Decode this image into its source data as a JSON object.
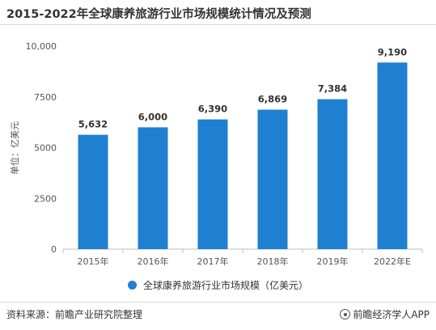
{
  "title": "2015-2022年全球康养旅游行业市场规模统计情况及预测",
  "chart_data": {
    "type": "bar",
    "categories": [
      "2015年",
      "2016年",
      "2017年",
      "2018年",
      "2019年",
      "2022年E"
    ],
    "series": [
      {
        "name": "全球康养旅游行业市场规模（亿美元）",
        "values": [
          5632,
          6000,
          6390,
          6869,
          7384,
          9190
        ],
        "data_labels": [
          "5,632",
          "6,000",
          "6,390",
          "6,869",
          "7,384",
          "9,190"
        ],
        "color": "#1f7fd0"
      }
    ],
    "ylabel": "单位：亿美元",
    "xlabel": "",
    "ylim": [
      0,
      10000
    ],
    "yticks": [
      0,
      2500,
      5000,
      7500,
      10000
    ],
    "ytick_labels": [
      "0",
      "2500",
      "5000",
      "7500",
      "10,000"
    ],
    "grid": false,
    "legend": "bottom"
  },
  "footer": {
    "source": "资料来源：前瞻产业研究院整理",
    "brand": "前瞻经济学人APP"
  }
}
